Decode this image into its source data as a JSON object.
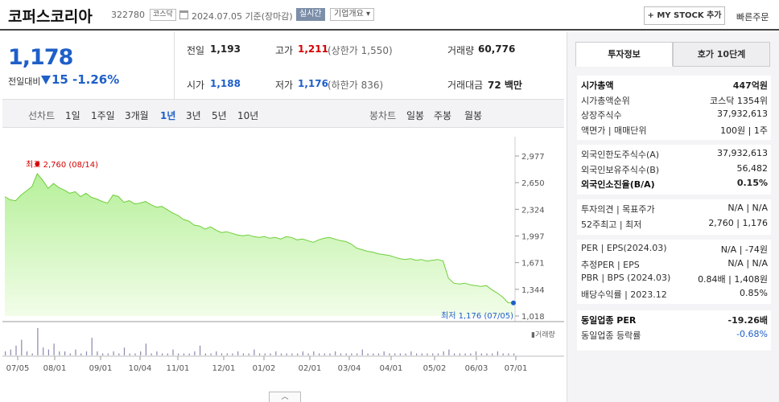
{
  "header": {
    "stock_name": "코퍼스코리아",
    "stock_code": "322780",
    "market_badge": "코스닥",
    "date_text": "2024.07.05  기준(장마감)",
    "live_badge": "실시간",
    "company_badge": "기업개요 ▾",
    "mystock_label": "+ MY STOCK 추가",
    "quick_order_label": "빠른주문"
  },
  "price": {
    "current": "1,178",
    "prev_label": "전일대비",
    "change": "15",
    "change_pct": "-1.26%"
  },
  "summary": {
    "prev_close_label": "전일",
    "prev_close": "1,193",
    "high_label": "고가",
    "high": "1,211",
    "upper_limit": "(상한가 1,550)",
    "volume_label": "거래량",
    "volume": "60,776",
    "open_label": "시가",
    "open": "1,188",
    "low_label": "저가",
    "low": "1,176",
    "lower_limit": "(하한가 836)",
    "amount_label": "거래대금",
    "amount": "72 백만"
  },
  "periods": {
    "line_label": "선차트",
    "line_items": [
      "1일",
      "1주일",
      "3개월",
      "1년",
      "3년",
      "5년",
      "10년"
    ],
    "active": "1년",
    "candle_label": "봉차트",
    "candle_items": [
      "일봉",
      "주봉",
      "월봉"
    ]
  },
  "chart_data": {
    "type": "area",
    "x_ticks": [
      "07/05",
      "08/01",
      "09/01",
      "10/04",
      "11/01",
      "12/01",
      "01/02",
      "02/01",
      "03/04",
      "04/01",
      "05/02",
      "06/03",
      "07/01"
    ],
    "y_ticks": [
      "2,977",
      "2,650",
      "2,324",
      "1,997",
      "1,671",
      "1,344",
      "1,018"
    ],
    "ylim": [
      1018,
      2977
    ],
    "series": [
      {
        "values": [
          2480,
          2440,
          2430,
          2500,
          2550,
          2600,
          2760,
          2680,
          2580,
          2640,
          2590,
          2560,
          2520,
          2540,
          2480,
          2520,
          2470,
          2450,
          2420,
          2400,
          2500,
          2480,
          2410,
          2430,
          2390,
          2400,
          2420,
          2380,
          2350,
          2360,
          2320,
          2280,
          2250,
          2200,
          2180,
          2130,
          2120,
          2080,
          2110,
          2070,
          2040,
          2050,
          2030,
          2010,
          2000,
          2010,
          1990,
          1980,
          1990,
          1970,
          1980,
          1960,
          1990,
          1980,
          1950,
          1960,
          1940,
          1920,
          1950,
          1970,
          1980,
          1960,
          1940,
          1930,
          1900,
          1850,
          1830,
          1810,
          1800,
          1780,
          1770,
          1760,
          1740,
          1720,
          1710,
          1720,
          1700,
          1710,
          1690,
          1700,
          1710,
          1690,
          1480,
          1420,
          1410,
          1420,
          1400,
          1390,
          1380,
          1390,
          1340,
          1300,
          1250,
          1180,
          1178
        ]
      }
    ],
    "high_label": "최고 2,760 (08/14)",
    "low_label": "최저 1,176 (07/05)",
    "volume_label": "▮거래량",
    "volume_values": [
      2,
      3,
      5,
      8,
      2,
      1,
      14,
      4,
      3,
      6,
      2,
      2,
      1,
      3,
      1,
      2,
      9,
      2,
      1,
      1,
      2,
      1,
      4,
      1,
      1,
      2,
      6,
      1,
      2,
      1,
      1,
      3,
      1,
      1,
      1,
      2,
      5,
      1,
      1,
      2,
      1,
      1,
      1,
      2,
      1,
      1,
      3,
      1,
      1,
      1,
      2,
      1,
      1,
      1,
      1,
      2,
      1,
      2,
      1,
      1,
      1,
      2,
      1,
      1,
      1,
      1,
      3,
      1,
      1,
      1,
      2,
      1,
      1,
      1,
      1,
      2,
      1,
      1,
      1,
      1,
      1,
      2,
      3,
      1,
      1,
      1,
      1,
      2,
      1,
      1,
      1,
      2,
      1,
      1,
      1
    ]
  },
  "right": {
    "tab_invest": "투자정보",
    "tab_hoga": "호가 10단계",
    "rows1": [
      {
        "k": "시가총액",
        "v": "447억원",
        "bold": true
      },
      {
        "k": "시가총액순위",
        "v": "코스닥  1354위"
      },
      {
        "k": "상장주식수",
        "v": "37,932,613"
      },
      {
        "k": "액면가 | 매매단위",
        "v": "100원 | 1주"
      }
    ],
    "rows2": [
      {
        "k": "외국인한도주식수(A)",
        "v": "37,932,613"
      },
      {
        "k": "외국인보유주식수(B)",
        "v": "56,482"
      },
      {
        "k": "외국인소진율(B/A)",
        "v": "0.15%",
        "bold": true
      }
    ],
    "rows3": [
      {
        "k": "투자의견  |  목표주가",
        "v": "N/A  |  N/A"
      },
      {
        "k": "52주최고  |  최저",
        "v": "2,760  |  1,176"
      }
    ],
    "rows4": [
      {
        "k": "PER  |  EPS(2024.03)",
        "v": "N/A  |  -74원"
      },
      {
        "k": "추정PER  |  EPS",
        "v": "N/A  |  N/A"
      },
      {
        "k": "PBR  |  BPS (2024.03)",
        "v": "0.84배  |  1,408원"
      },
      {
        "k": "배당수익률  |  2023.12",
        "v": "0.85%"
      }
    ],
    "rows5": [
      {
        "k": "동일업종 PER",
        "v": "-19.26배",
        "bold": true
      },
      {
        "k": "동일업종 등락률",
        "v": "-0.68%",
        "blue": true
      }
    ]
  }
}
